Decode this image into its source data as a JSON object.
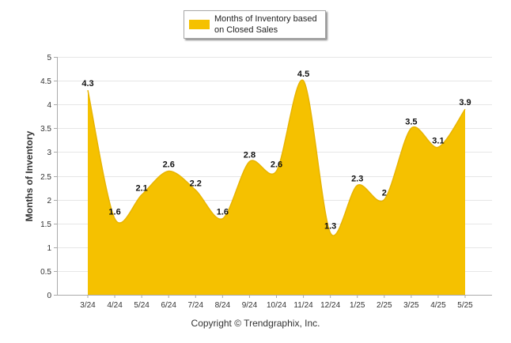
{
  "chart_data": {
    "type": "area",
    "x": [
      "3/24",
      "4/24",
      "5/24",
      "6/24",
      "7/24",
      "8/24",
      "9/24",
      "10/24",
      "11/24",
      "12/24",
      "1/25",
      "2/25",
      "3/25",
      "4/25",
      "5/25"
    ],
    "series": [
      {
        "name": "Months of Inventory based on Closed Sales",
        "values": [
          4.3,
          1.6,
          2.1,
          2.6,
          2.2,
          1.6,
          2.8,
          2.6,
          4.5,
          1.3,
          2.3,
          2.0,
          3.5,
          3.1,
          3.9
        ],
        "labels": [
          "4.3",
          "1.6",
          "2.1",
          "2.6",
          "2.2",
          "1.6",
          "2.8",
          "2.6",
          "4.5",
          "1.3",
          "2.3",
          "2",
          "3.5",
          "3.1",
          "3.9"
        ],
        "color": "#f5c100"
      }
    ],
    "ylabel": "Months of Inventory",
    "xlabel": "",
    "ylim": [
      0,
      5
    ],
    "yticks": [
      "0",
      "0.5",
      "1",
      "1.5",
      "2",
      "2.5",
      "3",
      "3.5",
      "4",
      "4.5",
      "5"
    ],
    "grid": true,
    "legend_position": "top-center",
    "footer": "Copyright © Trendgraphix, Inc."
  }
}
